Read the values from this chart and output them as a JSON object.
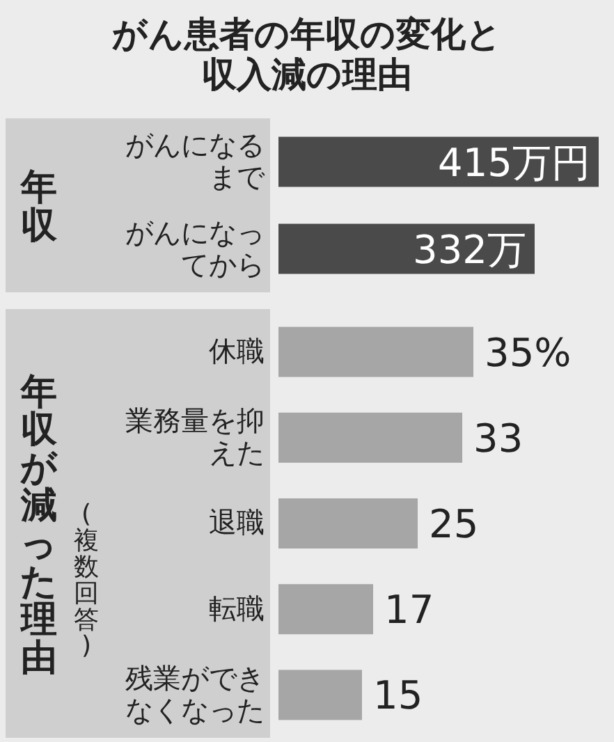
{
  "chart_data": [
    {
      "type": "bar",
      "orientation": "horizontal",
      "title": "がん患者の年収の変化と収入減の理由",
      "ylabel": "年収",
      "categories": [
        "がんになるまで",
        "がんになってから"
      ],
      "values": [
        415,
        332
      ],
      "value_labels": [
        "415万円",
        "332万"
      ],
      "color": "#4a4a4a"
    },
    {
      "type": "bar",
      "orientation": "horizontal",
      "ylabel": "年収が減った理由",
      "annotations": [
        "(複数回答)"
      ],
      "categories": [
        "休職",
        "業務量を抑えた",
        "退職",
        "転職",
        "残業ができなくなった"
      ],
      "values": [
        35,
        33,
        25,
        17,
        15
      ],
      "value_labels": [
        "35%",
        "33",
        "25",
        "17",
        "15"
      ],
      "color": "#a6a6a6"
    }
  ]
}
